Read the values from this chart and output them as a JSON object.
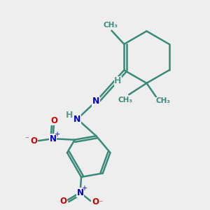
{
  "bg_color": "#eeeeee",
  "bond_color": "#3a8a7a",
  "bond_width": 1.8,
  "N_color": "#0000cc",
  "O_color": "#cc0000",
  "H_color": "#5a9a8a",
  "fig_width": 3.0,
  "fig_height": 3.0,
  "dpi": 100,
  "xlim": [
    0,
    10
  ],
  "ylim": [
    0,
    10
  ]
}
